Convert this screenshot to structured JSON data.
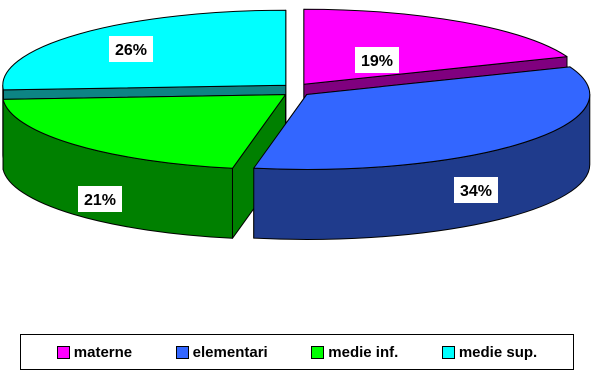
{
  "chart_data": {
    "type": "pie",
    "style": "3d-exploded",
    "categories": [
      "materne",
      "elementari",
      "medie inf.",
      "medie sup."
    ],
    "values": [
      19,
      34,
      21,
      26
    ],
    "data_labels": [
      "19%",
      "34%",
      "21%",
      "26%"
    ],
    "colors": {
      "top": [
        "#ff00ff",
        "#3366ff",
        "#00ff00",
        "#00ffff"
      ],
      "side": [
        "#80007f",
        "#1f3b8c",
        "#008000",
        "#0d8484"
      ]
    },
    "legend": {
      "placement": "bottom",
      "entries": [
        "materne",
        "elementari",
        "medie inf.",
        "medie sup."
      ]
    },
    "title": "",
    "xlabel": "",
    "ylabel": ""
  }
}
